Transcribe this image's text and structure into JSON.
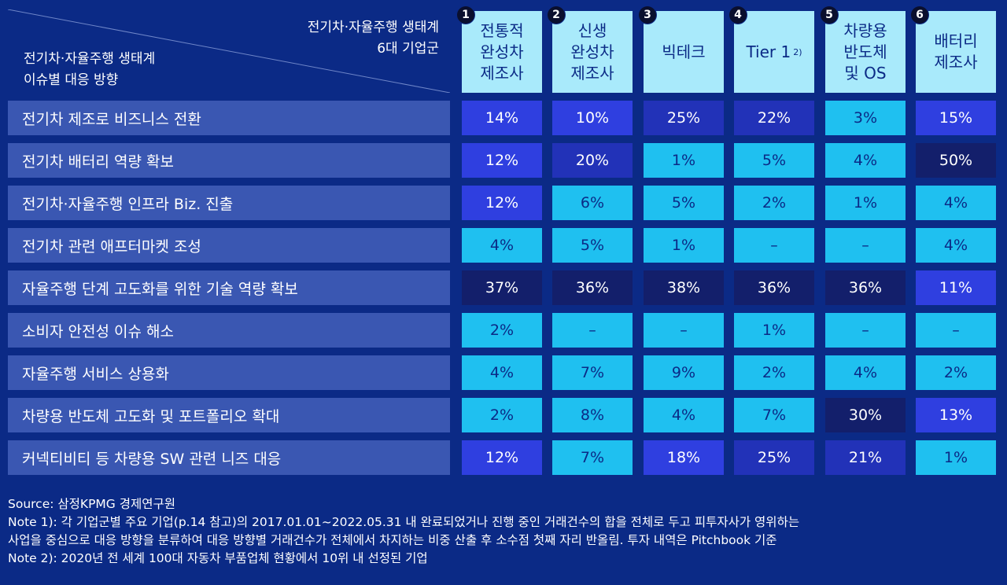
{
  "chart_data": {
    "type": "table",
    "corner": {
      "column_axis_label_line1": "전기차·자율주행 생태계",
      "column_axis_label_line2": "6대 기업군",
      "row_axis_label_line1": "전기차·자율주행 생태계",
      "row_axis_label_line2": "이슈별 대응 방향"
    },
    "columns": [
      {
        "number": "1",
        "label": "전통적\n완성차\n제조사",
        "sup": ""
      },
      {
        "number": "2",
        "label": "신생\n완성차\n제조사",
        "sup": ""
      },
      {
        "number": "3",
        "label": "빅테크",
        "sup": ""
      },
      {
        "number": "4",
        "label": "Tier 1",
        "sup": "2)"
      },
      {
        "number": "5",
        "label": "차량용\n반도체\n및 OS",
        "sup": ""
      },
      {
        "number": "6",
        "label": "배터리\n제조사",
        "sup": ""
      }
    ],
    "rows": [
      {
        "label": "전기차 제조로 비즈니스 전환",
        "values": [
          "14%",
          "10%",
          "25%",
          "22%",
          "3%",
          "15%"
        ]
      },
      {
        "label": "전기차 배터리 역량 확보",
        "values": [
          "12%",
          "20%",
          "1%",
          "5%",
          "4%",
          "50%"
        ]
      },
      {
        "label": "전기차·자율주행 인프라 Biz. 진출",
        "values": [
          "12%",
          "6%",
          "5%",
          "2%",
          "1%",
          "4%"
        ]
      },
      {
        "label": "전기차 관련 애프터마켓 조성",
        "values": [
          "4%",
          "5%",
          "1%",
          "–",
          "–",
          "4%"
        ]
      },
      {
        "label": "자율주행 단계 고도화를 위한 기술 역량 확보",
        "values": [
          "37%",
          "36%",
          "38%",
          "36%",
          "36%",
          "11%"
        ]
      },
      {
        "label": "소비자 안전성 이슈 해소",
        "values": [
          "2%",
          "–",
          "–",
          "1%",
          "–",
          "–"
        ]
      },
      {
        "label": "자율주행 서비스 상용화",
        "values": [
          "4%",
          "7%",
          "9%",
          "2%",
          "4%",
          "2%"
        ]
      },
      {
        "label": "차량용 반도체 고도화 및 포트폴리오 확대",
        "values": [
          "2%",
          "8%",
          "4%",
          "7%",
          "30%",
          "13%"
        ]
      },
      {
        "label": "커넥티비티 등 차량용 SW 관련 니즈 대응",
        "values": [
          "12%",
          "7%",
          "18%",
          "25%",
          "21%",
          "1%"
        ]
      }
    ],
    "colors": {
      "background": "#0b2a86",
      "header": "#a9eafb",
      "row_label": "#3a57b2",
      "scale": [
        "#1fc0f0",
        "#1fc0f0",
        "#2f3fe0",
        "#2232b8",
        "#131f6b"
      ]
    }
  },
  "notes": {
    "source": "Source: 삼정KPMG 경제연구원",
    "note1_line1": "Note 1): 각 기업군별 주요 기업(p.14 참고)의 2017.01.01~2022.05.31 내 완료되었거나 진행 중인 거래건수의 합을 전체로 두고 피투자사가 영위하는",
    "note1_line2": "사업을 중심으로 대응 방향을 분류하여 대응 방향별 거래건수가 전체에서 차지하는 비중 산출 후 소수점 첫째 자리 반올림. 투자 내역은 Pitchbook 기준",
    "note2": "Note 2): 2020년 전 세계 100대 자동차 부품업체 현황에서 10위 내 선정된 기업"
  }
}
